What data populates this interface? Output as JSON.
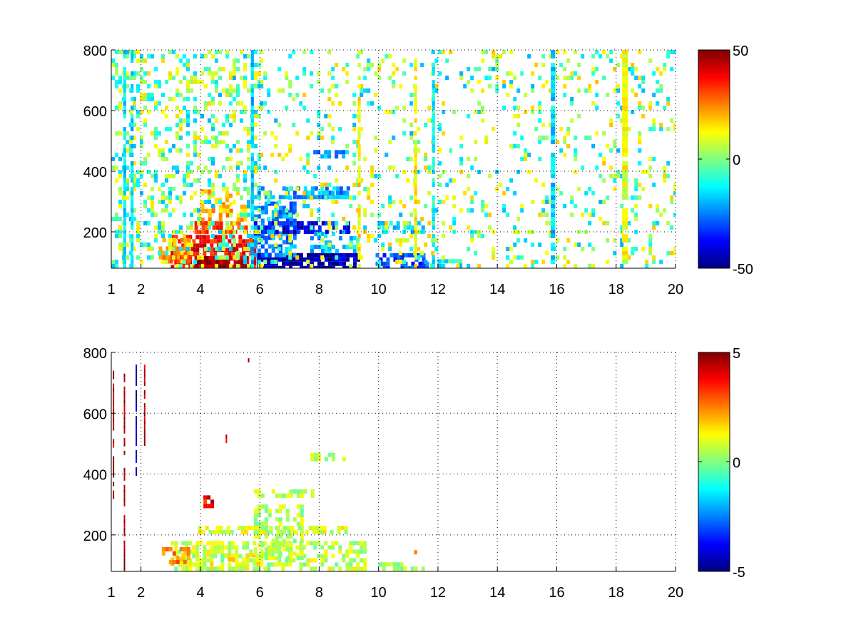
{
  "chart_data": [
    {
      "type": "heatmap",
      "xlim": [
        1,
        20
      ],
      "ylim": [
        80,
        800
      ],
      "x_ticks": [
        1,
        2,
        4,
        6,
        8,
        10,
        12,
        14,
        16,
        18,
        20
      ],
      "x_tick_labels": [
        "1",
        "2",
        "4",
        "6",
        "8",
        "10",
        "12",
        "14",
        "16",
        "18",
        "20"
      ],
      "y_ticks": [
        200,
        400,
        600,
        800
      ],
      "y_tick_labels": [
        "200",
        "400",
        "600",
        "800"
      ],
      "grid": true,
      "colormap": "jet",
      "clim": [
        -50,
        50
      ],
      "colorbar_ticks": [
        50,
        0,
        -50
      ],
      "colorbar_tick_labels": [
        "50",
        "0",
        "-50"
      ],
      "regions": [
        {
          "x": [
            3.0,
            5.8
          ],
          "y": [
            85,
            190
          ],
          "value": 38,
          "density": 0.75
        },
        {
          "x": [
            3.8,
            5.6
          ],
          "y": [
            90,
            120
          ],
          "value": 48,
          "density": 0.85
        },
        {
          "x": [
            2.6,
            3.6
          ],
          "y": [
            100,
            180
          ],
          "value": 22,
          "density": 0.6
        },
        {
          "x": [
            3.8,
            5.6
          ],
          "y": [
            195,
            235
          ],
          "value": 30,
          "density": 0.6
        },
        {
          "x": [
            4.0,
            5.0
          ],
          "y": [
            290,
            340
          ],
          "value": 18,
          "density": 0.5
        },
        {
          "x": [
            3.9,
            5.6
          ],
          "y": [
            240,
            290
          ],
          "value": 20,
          "density": 0.5
        },
        {
          "x": [
            5.9,
            9.3
          ],
          "y": [
            85,
            130
          ],
          "value": -45,
          "density": 0.85
        },
        {
          "x": [
            5.8,
            7.2
          ],
          "y": [
            130,
            300
          ],
          "value": -25,
          "density": 0.6
        },
        {
          "x": [
            5.8,
            9.0
          ],
          "y": [
            200,
            235
          ],
          "value": -38,
          "density": 0.7
        },
        {
          "x": [
            7.7,
            9.2
          ],
          "y": [
            130,
            200
          ],
          "value": -18,
          "density": 0.5
        },
        {
          "x": [
            5.8,
            9.0
          ],
          "y": [
            320,
            350
          ],
          "value": -22,
          "density": 0.6
        },
        {
          "x": [
            7.8,
            9.0
          ],
          "y": [
            445,
            470
          ],
          "value": -22,
          "density": 0.7
        },
        {
          "x": [
            9.9,
            11.6
          ],
          "y": [
            85,
            130
          ],
          "value": -30,
          "density": 0.7
        },
        {
          "x": [
            11.5,
            12.8
          ],
          "y": [
            85,
            110
          ],
          "value": -12,
          "density": 0.5
        },
        {
          "x": [
            10.0,
            11.5
          ],
          "y": [
            200,
            235
          ],
          "value": -15,
          "density": 0.5
        },
        {
          "x": [
            1.0,
            6.0
          ],
          "y": [
            80,
            800
          ],
          "value": 8,
          "density": 0.18
        },
        {
          "x": [
            1.0,
            6.0
          ],
          "y": [
            80,
            800
          ],
          "value": -12,
          "density": 0.12
        },
        {
          "x": [
            6.0,
            20.0
          ],
          "y": [
            80,
            800
          ],
          "value": 10,
          "density": 0.08
        },
        {
          "x": [
            6.0,
            20.0
          ],
          "y": [
            80,
            800
          ],
          "value": -12,
          "density": 0.06
        }
      ],
      "streaks": [
        {
          "x": [
            1.4,
            1.5
          ],
          "y": [
            80,
            800
          ],
          "value": -14
        },
        {
          "x": [
            1.65,
            1.75
          ],
          "y": [
            80,
            800
          ],
          "value": -16
        },
        {
          "x": [
            5.7,
            5.8
          ],
          "y": [
            80,
            800
          ],
          "value": -18
        },
        {
          "x": [
            9.3,
            9.4
          ],
          "y": [
            80,
            800
          ],
          "value": 14
        },
        {
          "x": [
            11.2,
            11.3
          ],
          "y": [
            80,
            800
          ],
          "value": 12
        },
        {
          "x": [
            15.8,
            15.95
          ],
          "y": [
            80,
            800
          ],
          "value": -16
        },
        {
          "x": [
            18.2,
            18.4
          ],
          "y": [
            80,
            800
          ],
          "value": 10
        },
        {
          "x": [
            11.8,
            11.9
          ],
          "y": [
            80,
            800
          ],
          "value": -12
        }
      ]
    },
    {
      "type": "heatmap",
      "xlim": [
        1,
        20
      ],
      "ylim": [
        80,
        800
      ],
      "x_ticks": [
        1,
        2,
        4,
        6,
        8,
        10,
        12,
        14,
        16,
        18,
        20
      ],
      "x_tick_labels": [
        "1",
        "2",
        "4",
        "6",
        "8",
        "10",
        "12",
        "14",
        "16",
        "18",
        "20"
      ],
      "y_ticks": [
        200,
        400,
        600,
        800
      ],
      "y_tick_labels": [
        "200",
        "400",
        "600",
        "800"
      ],
      "grid": true,
      "colormap": "jet",
      "clim": [
        -5,
        5
      ],
      "colorbar_ticks": [
        5,
        0,
        -5
      ],
      "colorbar_tick_labels": [
        "5",
        "0",
        "-5"
      ],
      "regions": [
        {
          "x": [
            3.0,
            9.5
          ],
          "y": [
            85,
            180
          ],
          "value": 0.6,
          "density": 0.55
        },
        {
          "x": [
            3.0,
            6.0
          ],
          "y": [
            85,
            140
          ],
          "value": 1.2,
          "density": 0.4
        },
        {
          "x": [
            5.8,
            7.4
          ],
          "y": [
            120,
            300
          ],
          "value": 0.5,
          "density": 0.45
        },
        {
          "x": [
            3.8,
            9.0
          ],
          "y": [
            205,
            230
          ],
          "value": 0.8,
          "density": 0.6
        },
        {
          "x": [
            5.8,
            7.8
          ],
          "y": [
            330,
            350
          ],
          "value": 0.5,
          "density": 0.5
        },
        {
          "x": [
            7.7,
            9.0
          ],
          "y": [
            455,
            470
          ],
          "value": 0.6,
          "density": 0.6
        },
        {
          "x": [
            10.0,
            11.6
          ],
          "y": [
            85,
            110
          ],
          "value": 0.6,
          "density": 0.5
        },
        {
          "x": [
            2.7,
            3.6
          ],
          "y": [
            110,
            160
          ],
          "value": 2.5,
          "density": 0.4
        },
        {
          "x": [
            4.1,
            4.4
          ],
          "y": [
            290,
            330
          ],
          "value": 3.8,
          "density": 0.6
        }
      ],
      "streaks": [
        {
          "x": [
            1.05,
            1.09
          ],
          "y": [
            330,
            740
          ],
          "value": 4.6
        },
        {
          "x": [
            1.42,
            1.46
          ],
          "y": [
            80,
            730
          ],
          "value": 4.8
        },
        {
          "x": [
            1.82,
            1.86
          ],
          "y": [
            400,
            760
          ],
          "value": -4.5
        },
        {
          "x": [
            2.1,
            2.14
          ],
          "y": [
            500,
            760
          ],
          "value": 4.5
        },
        {
          "x": [
            5.6,
            5.65
          ],
          "y": [
            770,
            795
          ],
          "value": 4.2
        },
        {
          "x": [
            4.85,
            4.9
          ],
          "y": [
            510,
            530
          ],
          "value": 4.0
        },
        {
          "x": [
            11.2,
            11.3
          ],
          "y": [
            130,
            150
          ],
          "value": 2.6
        }
      ]
    }
  ]
}
